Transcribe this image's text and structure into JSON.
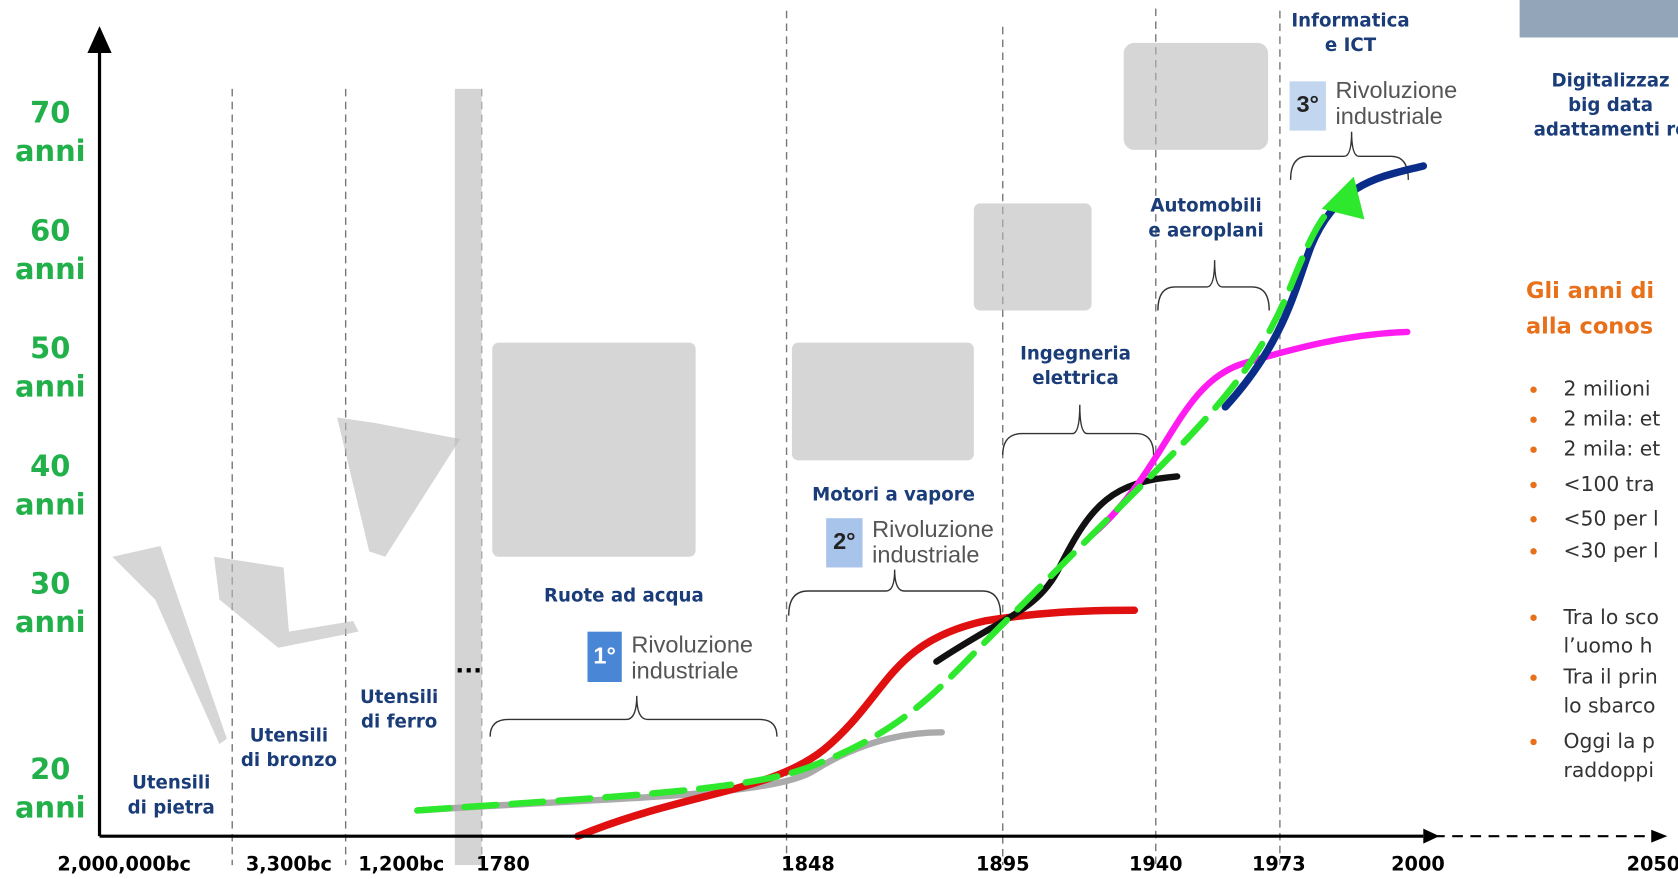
{
  "y_labels": [
    [
      "70",
      "anni"
    ],
    [
      "60",
      "anni"
    ],
    [
      "50",
      "anni"
    ],
    [
      "40",
      "anni"
    ],
    [
      "30",
      "anni"
    ],
    [
      "20",
      "anni"
    ]
  ],
  "x_labels": [
    "2,000,000bc",
    "3,300bc",
    "1,200bc",
    "1780",
    "1848",
    "1895",
    "1940",
    "1973",
    "2000",
    "2050"
  ],
  "eras": [
    [
      "Utensili",
      "di pietra"
    ],
    [
      "Utensili",
      "di bronzo"
    ],
    [
      "Utensili",
      "di ferro"
    ],
    [
      "Ruote ad acqua"
    ],
    [
      "Motori a vapore"
    ],
    [
      "Ingegneria",
      "elettrica"
    ],
    [
      "Automobili",
      "e aeroplani"
    ],
    [
      "Informatica",
      "e ICT"
    ],
    [
      "Digitalizzaz",
      "big data",
      "adattamenti re"
    ]
  ],
  "revolutions": [
    {
      "ordinal": "1°",
      "text": [
        "Rivoluzione",
        "industriale"
      ]
    },
    {
      "ordinal": "2°",
      "text": [
        "Rivoluzione",
        "industriale"
      ]
    },
    {
      "ordinal": "3°",
      "text": [
        "Rivoluzione",
        "industriale"
      ]
    }
  ],
  "ellipsis": "...",
  "panel": {
    "title": [
      "Gli anni di",
      "alla conos"
    ],
    "bullets": [
      [
        "2 milioni"
      ],
      [
        "2 mila: et"
      ],
      [
        "2 mila: et"
      ],
      [
        "<100 tra"
      ],
      [
        "<50 per l"
      ],
      [
        "<30 per l"
      ],
      [
        "Tra lo sco",
        "l’uomo h"
      ],
      [
        "Tra il prin",
        "lo sbarco"
      ],
      [
        "Oggi la p",
        "raddoppi"
      ]
    ]
  }
}
